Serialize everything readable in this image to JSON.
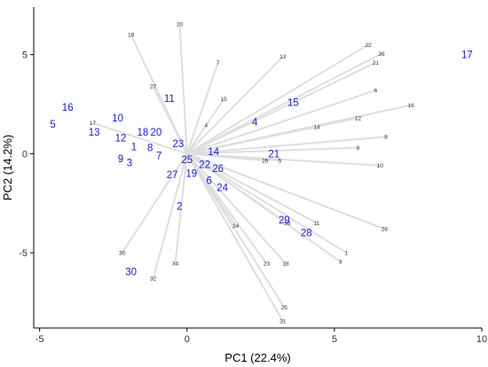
{
  "chart_data": {
    "type": "scatter",
    "title": "",
    "xlabel": "PC1 (22.4%)",
    "ylabel": "PC2 (14.2%)",
    "xlim": [
      -5.2,
      10.0
    ],
    "ylim": [
      -8.8,
      7.4
    ],
    "xticks": [
      -5,
      0,
      5,
      10
    ],
    "yticks": [
      -5,
      0,
      5
    ],
    "grid": false,
    "loading_color": "#dedede",
    "loading_label_color": "#333333",
    "score_color": "#1a1acc",
    "loadings": [
      {
        "label": "1",
        "x": 5.4,
        "y": -5.0
      },
      {
        "label": "3",
        "x": 5.2,
        "y": -5.45
      },
      {
        "label": "4",
        "x": 0.65,
        "y": 1.45
      },
      {
        "label": "5",
        "x": 3.15,
        "y": -0.35
      },
      {
        "label": "6",
        "x": 6.4,
        "y": 3.2
      },
      {
        "label": "7",
        "x": 1.05,
        "y": 4.6
      },
      {
        "label": "8",
        "x": 6.75,
        "y": 0.85
      },
      {
        "label": "9",
        "x": 5.8,
        "y": 0.3
      },
      {
        "label": "10",
        "x": 6.55,
        "y": -0.6
      },
      {
        "label": "11",
        "x": 4.4,
        "y": -3.5
      },
      {
        "label": "12",
        "x": 5.8,
        "y": 1.8
      },
      {
        "label": "13",
        "x": 3.25,
        "y": 4.9
      },
      {
        "label": "14",
        "x": 4.4,
        "y": 1.35
      },
      {
        "label": "15",
        "x": 1.25,
        "y": 2.75
      },
      {
        "label": "16",
        "x": 7.6,
        "y": 2.45
      },
      {
        "label": "17",
        "x": -3.2,
        "y": 1.55
      },
      {
        "label": "18",
        "x": 3.35,
        "y": -5.55
      },
      {
        "label": "19",
        "x": -1.9,
        "y": 6.0
      },
      {
        "label": "20",
        "x": -0.25,
        "y": 6.55
      },
      {
        "label": "21",
        "x": 6.4,
        "y": 4.6
      },
      {
        "label": "22",
        "x": 6.15,
        "y": 5.5
      },
      {
        "label": "23",
        "x": 2.7,
        "y": -5.55
      },
      {
        "label": "24",
        "x": 1.65,
        "y": -3.65
      },
      {
        "label": "25",
        "x": 3.3,
        "y": -7.75
      },
      {
        "label": "26",
        "x": 6.6,
        "y": 5.05
      },
      {
        "label": "27",
        "x": -1.15,
        "y": 3.4
      },
      {
        "label": "28",
        "x": 6.7,
        "y": -3.8
      },
      {
        "label": "29",
        "x": 2.65,
        "y": -0.35
      },
      {
        "label": "30",
        "x": -2.2,
        "y": -5.0
      },
      {
        "label": "31",
        "x": 3.25,
        "y": -8.45
      },
      {
        "label": "32",
        "x": -1.15,
        "y": -6.3
      },
      {
        "label": "33",
        "x": 3.4,
        "y": -3.5
      },
      {
        "label": "34",
        "x": -0.4,
        "y": -5.55
      }
    ],
    "scores": [
      {
        "label": "1",
        "x": -1.8,
        "y": 0.35
      },
      {
        "label": "2",
        "x": -0.25,
        "y": -2.65
      },
      {
        "label": "3",
        "x": -1.95,
        "y": -0.45
      },
      {
        "label": "4",
        "x": 2.3,
        "y": 1.6
      },
      {
        "label": "5",
        "x": -4.55,
        "y": 1.5
      },
      {
        "label": "6",
        "x": 0.75,
        "y": -1.35
      },
      {
        "label": "7",
        "x": -0.95,
        "y": -0.1
      },
      {
        "label": "8",
        "x": -1.25,
        "y": 0.3
      },
      {
        "label": "9",
        "x": -2.25,
        "y": -0.25
      },
      {
        "label": "10",
        "x": -2.35,
        "y": 1.8
      },
      {
        "label": "11",
        "x": -0.6,
        "y": 2.8
      },
      {
        "label": "12",
        "x": -2.25,
        "y": 0.8
      },
      {
        "label": "13",
        "x": -3.15,
        "y": 1.1
      },
      {
        "label": "14",
        "x": 0.9,
        "y": 0.1
      },
      {
        "label": "15",
        "x": 3.6,
        "y": 2.6
      },
      {
        "label": "16",
        "x": -4.05,
        "y": 2.35
      },
      {
        "label": "17",
        "x": 9.5,
        "y": 5.0
      },
      {
        "label": "18",
        "x": -1.5,
        "y": 1.1
      },
      {
        "label": "19",
        "x": 0.15,
        "y": -1.0
      },
      {
        "label": "20",
        "x": -1.05,
        "y": 1.1
      },
      {
        "label": "21",
        "x": 2.95,
        "y": 0.0
      },
      {
        "label": "22",
        "x": 0.6,
        "y": -0.55
      },
      {
        "label": "23",
        "x": -0.3,
        "y": 0.5
      },
      {
        "label": "24",
        "x": 1.2,
        "y": -1.7
      },
      {
        "label": "25",
        "x": 0.0,
        "y": -0.3
      },
      {
        "label": "26",
        "x": 1.05,
        "y": -0.75
      },
      {
        "label": "27",
        "x": -0.5,
        "y": -1.05
      },
      {
        "label": "28",
        "x": 4.05,
        "y": -4.0
      },
      {
        "label": "29",
        "x": 3.3,
        "y": -3.35
      },
      {
        "label": "30",
        "x": -1.9,
        "y": -5.95
      }
    ]
  }
}
